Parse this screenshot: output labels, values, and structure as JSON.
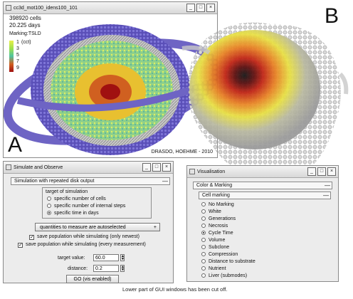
{
  "sim_view": {
    "window_title": "cc3d_mot100_idens100_101",
    "cell_count": "398920 cells",
    "days": "20.225 days",
    "marking_label": "Marking:TSLD",
    "legend_values": [
      "1",
      "3",
      "5",
      "7",
      "9"
    ],
    "legend_unit": "(cct)",
    "legend_colors": [
      "#e8f04a",
      "#9fe04a",
      "#4fc4a0",
      "#d06020",
      "#a01010"
    ],
    "credit": "DRASDO, HOEHME - 2010",
    "panel_letter": "A"
  },
  "render_view": {
    "panel_letter": "B"
  },
  "simulate_window": {
    "title": "Simulate and Observe",
    "panel_header": "Simulation with repeated disk output",
    "target_group_label": "target of simulation",
    "target_options": [
      {
        "label": "specific number of cells",
        "selected": false
      },
      {
        "label": "specific number of internal steps",
        "selected": false
      },
      {
        "label": "specific time in days",
        "selected": true
      }
    ],
    "autoselect_label": "quantities to measure are autoselected",
    "save_newest_label": "save population while simulating (only newest)",
    "save_every_label": "save population while simulating (every measurement)",
    "target_value_label": "target value:",
    "target_value": "60.0",
    "distance_label": "distance:",
    "distance_value": "0.2",
    "go_button": "GO (vis enabled)"
  },
  "visual_window": {
    "title": "Visualisation",
    "panel_header": "Color & Marking",
    "sub_header": "Cell marking",
    "options": [
      {
        "label": "No Marking",
        "selected": false
      },
      {
        "label": "White",
        "selected": false
      },
      {
        "label": "Generations",
        "selected": false
      },
      {
        "label": "Necrosis",
        "selected": false
      },
      {
        "label": "Cycle Time",
        "selected": true
      },
      {
        "label": "Volume",
        "selected": false
      },
      {
        "label": "Subclone",
        "selected": false
      },
      {
        "label": "Compression",
        "selected": false
      },
      {
        "label": "Distance to substrate",
        "selected": false
      },
      {
        "label": "Nutrient",
        "selected": false
      },
      {
        "label": "Liver (submodes)",
        "selected": false
      }
    ]
  },
  "caption": "Lower part of GUI windows has been cut off."
}
